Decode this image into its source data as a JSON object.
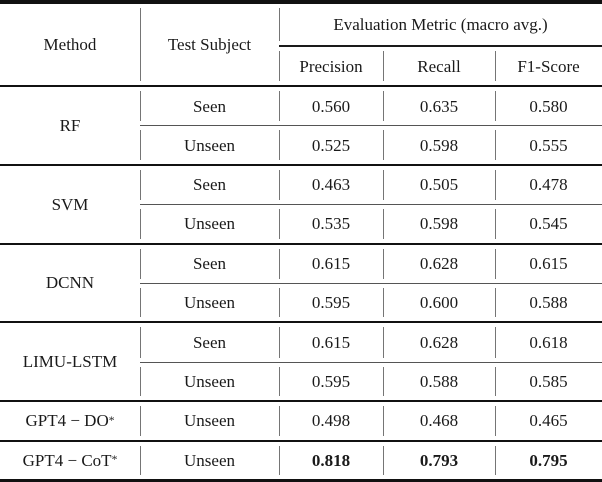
{
  "table": {
    "headers": {
      "method": "Method",
      "test_subject": "Test Subject",
      "eval_metric": "Evaluation Metric (macro avg.)",
      "precision": "Precision",
      "recall": "Recall",
      "f1": "F1-Score"
    },
    "groups": [
      {
        "method": "RF",
        "rows": [
          {
            "subject": "Seen",
            "precision": "0.560",
            "recall": "0.635",
            "f1": "0.580"
          },
          {
            "subject": "Unseen",
            "precision": "0.525",
            "recall": "0.598",
            "f1": "0.555"
          }
        ]
      },
      {
        "method": "SVM",
        "rows": [
          {
            "subject": "Seen",
            "precision": "0.463",
            "recall": "0.505",
            "f1": "0.478"
          },
          {
            "subject": "Unseen",
            "precision": "0.535",
            "recall": "0.598",
            "f1": "0.545"
          }
        ]
      },
      {
        "method": "DCNN",
        "rows": [
          {
            "subject": "Seen",
            "precision": "0.615",
            "recall": "0.628",
            "f1": "0.615"
          },
          {
            "subject": "Unseen",
            "precision": "0.595",
            "recall": "0.600",
            "f1": "0.588"
          }
        ]
      },
      {
        "method": "LIMU-LSTM",
        "rows": [
          {
            "subject": "Seen",
            "precision": "0.615",
            "recall": "0.628",
            "f1": "0.618"
          },
          {
            "subject": "Unseen",
            "precision": "0.595",
            "recall": "0.588",
            "f1": "0.585"
          }
        ]
      },
      {
        "method": "GPT4 − DO",
        "method_sup": "*",
        "rows": [
          {
            "subject": "Unseen",
            "precision": "0.498",
            "recall": "0.468",
            "f1": "0.465"
          }
        ]
      },
      {
        "method": "GPT4 − CoT",
        "method_sup": "*",
        "bold": true,
        "rows": [
          {
            "subject": "Unseen",
            "precision": "0.818",
            "recall": "0.793",
            "f1": "0.795"
          }
        ]
      }
    ],
    "colors": {
      "rule_heavy": "#111111",
      "rule_light": "#555555",
      "vbar": "#757575",
      "text": "#1a1a1a"
    }
  }
}
